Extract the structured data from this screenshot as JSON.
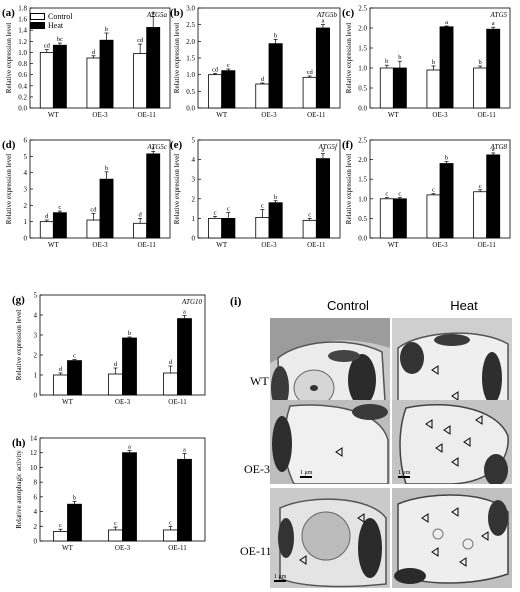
{
  "panels": [
    {
      "letter": "(a)",
      "gene": "ATG5a",
      "ylabel": "Relative expression level",
      "ylim": [
        0,
        1.8
      ],
      "ticks": [
        "0.0",
        "0.2",
        "0.4",
        "0.6",
        "0.8",
        "1.0",
        "1.2",
        "1.4",
        "1.6",
        "1.8"
      ],
      "categories": [
        "WT",
        "OE-3",
        "OE-11"
      ],
      "control": [
        1.0,
        0.9,
        0.98
      ],
      "heat": [
        1.13,
        1.22,
        1.45
      ],
      "control_err": [
        0.05,
        0.04,
        0.17
      ],
      "heat_err": [
        0.04,
        0.13,
        0.2
      ],
      "letters_control": [
        "cd",
        "d",
        "cd"
      ],
      "letters_heat": [
        "bc",
        "b",
        "a"
      ]
    },
    {
      "letter": "(b)",
      "gene": "ATG5b",
      "ylabel": "Relative expression level",
      "ylim": [
        0,
        3.0
      ],
      "ticks": [
        "0.0",
        "0.5",
        "1.0",
        "1.5",
        "2.0",
        "2.5",
        "3.0"
      ],
      "categories": [
        "WT",
        "OE-3",
        "OE-11"
      ],
      "control": [
        1.0,
        0.72,
        0.92
      ],
      "heat": [
        1.12,
        1.93,
        2.4
      ],
      "control_err": [
        0.04,
        0.03,
        0.04
      ],
      "heat_err": [
        0.05,
        0.13,
        0.1
      ],
      "letters_control": [
        "cd",
        "d",
        "cd"
      ],
      "letters_heat": [
        "c",
        "b",
        "a"
      ]
    },
    {
      "letter": "(c)",
      "gene": "ATG5",
      "ylabel": "Relative expression level",
      "ylim": [
        0,
        2.5
      ],
      "ticks": [
        "0.0",
        "0.5",
        "1.0",
        "1.5",
        "2.0",
        "2.5"
      ],
      "categories": [
        "WT",
        "OE-3",
        "OE-11"
      ],
      "control": [
        1.0,
        0.95,
        1.0
      ],
      "heat": [
        1.0,
        2.03,
        1.97
      ],
      "control_err": [
        0.07,
        0.1,
        0.05
      ],
      "heat_err": [
        0.17,
        0.02,
        0.05
      ],
      "letters_control": [
        "b",
        "b",
        "b"
      ],
      "letters_heat": [
        "b",
        "a",
        "a"
      ]
    },
    {
      "letter": "(d)",
      "gene": "ATG5c",
      "ylabel": "Relative expression level",
      "ylim": [
        0,
        6
      ],
      "ticks": [
        "0",
        "1",
        "2",
        "3",
        "4",
        "5",
        "6"
      ],
      "categories": [
        "WT",
        "OE-3",
        "OE-11"
      ],
      "control": [
        1.0,
        1.1,
        0.9
      ],
      "heat": [
        1.55,
        3.6,
        5.15
      ],
      "control_err": [
        0.1,
        0.4,
        0.3
      ],
      "heat_err": [
        0.1,
        0.45,
        0.15
      ],
      "letters_control": [
        "d",
        "cd",
        "d"
      ],
      "letters_heat": [
        "c",
        "b",
        "a"
      ]
    },
    {
      "letter": "(e)",
      "gene": "ATG5f",
      "ylabel": "Relative expression level",
      "ylim": [
        0,
        5
      ],
      "ticks": [
        "0",
        "1",
        "2",
        "3",
        "4",
        "5"
      ],
      "categories": [
        "WT",
        "OE-3",
        "OE-11"
      ],
      "control": [
        1.0,
        1.05,
        0.9
      ],
      "heat": [
        1.0,
        1.8,
        4.05
      ],
      "control_err": [
        0.1,
        0.4,
        0.1
      ],
      "heat_err": [
        0.3,
        0.1,
        0.25
      ],
      "letters_control": [
        "c",
        "c",
        "c"
      ],
      "letters_heat": [
        "c",
        "b",
        "a"
      ]
    },
    {
      "letter": "(f)",
      "gene": "ATG8",
      "ylabel": "Relative expression level",
      "ylim": [
        0,
        2.5
      ],
      "ticks": [
        "0.0",
        "0.5",
        "1.0",
        "1.5",
        "2.0",
        "2.5"
      ],
      "categories": [
        "WT",
        "OE-3",
        "OE-11"
      ],
      "control": [
        1.0,
        1.1,
        1.18
      ],
      "heat": [
        1.0,
        1.9,
        2.12
      ],
      "control_err": [
        0.03,
        0.03,
        0.05
      ],
      "heat_err": [
        0.03,
        0.05,
        0.05
      ],
      "letters_control": [
        "c",
        "c",
        "c"
      ],
      "letters_heat": [
        "c",
        "b",
        "a"
      ]
    },
    {
      "letter": "(g)",
      "gene": "ATG10",
      "ylabel": "Relative expression level",
      "ylim": [
        0,
        5
      ],
      "ticks": [
        "0",
        "1",
        "2",
        "3",
        "4",
        "5"
      ],
      "categories": [
        "WT",
        "OE-3",
        "OE-11"
      ],
      "control": [
        1.0,
        1.05,
        1.1
      ],
      "heat": [
        1.72,
        2.85,
        3.82
      ],
      "control_err": [
        0.1,
        0.3,
        0.35
      ],
      "heat_err": [
        0.05,
        0.05,
        0.15
      ],
      "letters_control": [
        "d",
        "d",
        "d"
      ],
      "letters_heat": [
        "c",
        "b",
        "a"
      ]
    },
    {
      "letter": "(h)",
      "gene": "",
      "ylabel": "Relative autophagic activity",
      "ylim": [
        0,
        14
      ],
      "ticks": [
        "0",
        "2",
        "4",
        "6",
        "8",
        "10",
        "12",
        "14"
      ],
      "categories": [
        "WT",
        "OE-3",
        "OE-11"
      ],
      "control": [
        1.3,
        1.5,
        1.5
      ],
      "heat": [
        5.0,
        12.0,
        11.1
      ],
      "control_err": [
        0.3,
        0.4,
        0.5
      ],
      "heat_err": [
        0.4,
        0.3,
        0.8
      ],
      "letters_control": [
        "c",
        "c",
        "c"
      ],
      "letters_heat": [
        "b",
        "a",
        "a"
      ]
    }
  ],
  "legend": {
    "control": "Control",
    "heat": "Heat"
  },
  "micrographs": {
    "letter": "(i)",
    "columns": [
      "Control",
      "Heat"
    ],
    "rows": [
      "WT",
      "OE-3",
      "OE-11"
    ],
    "scalebar": "1 μm"
  }
}
